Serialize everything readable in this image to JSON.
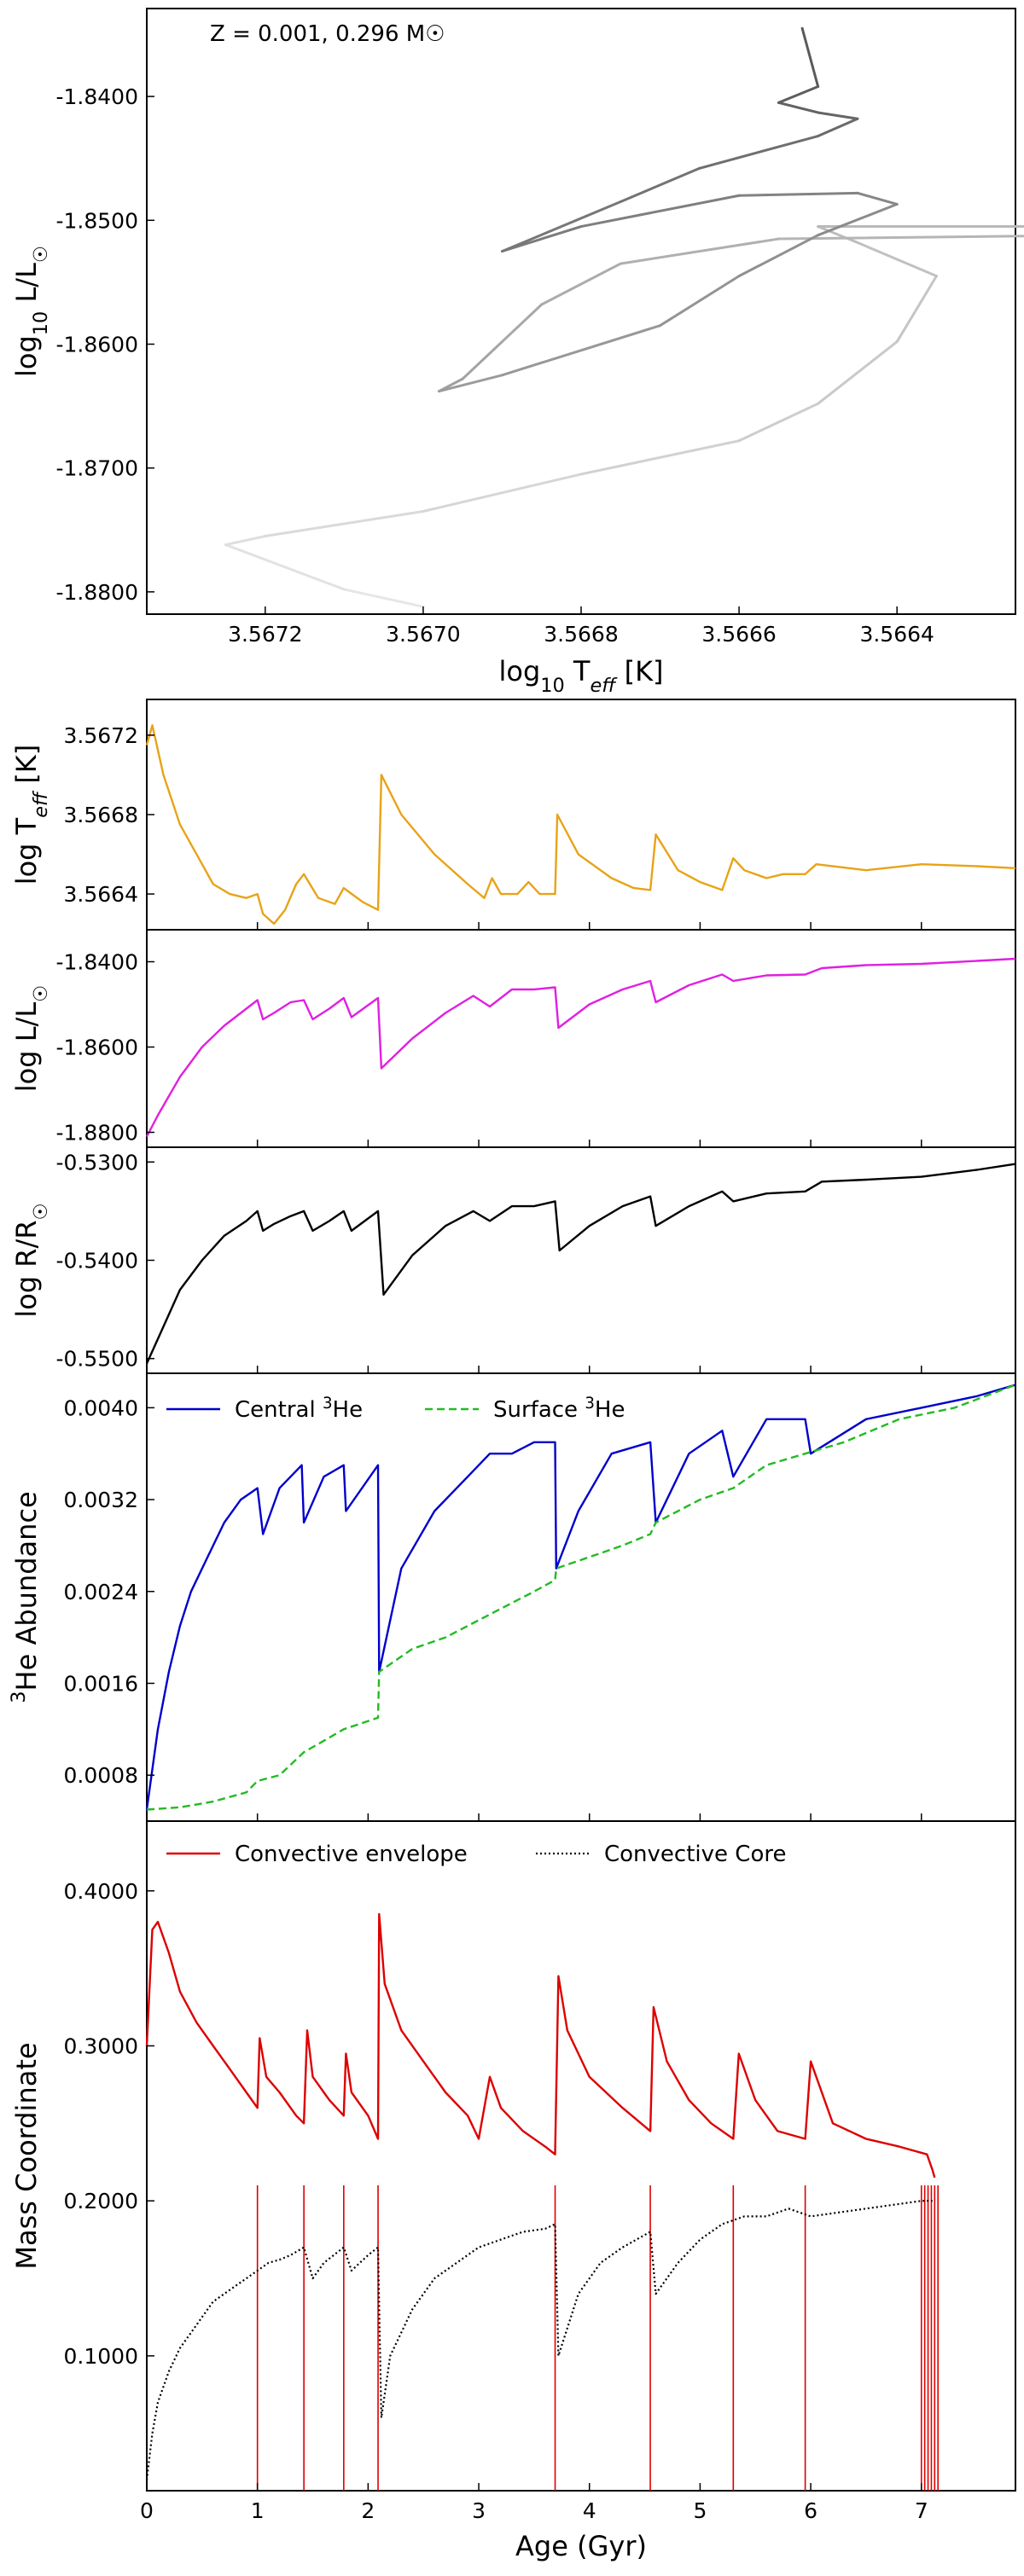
{
  "chart_data": [
    {
      "type": "line",
      "panel": "hr",
      "annotation": "Z = 0.001, 0.296 M☉",
      "xlabel": "log10 Teff [K]",
      "ylabel": "log10 L/L☉",
      "xlim": [
        3.56735,
        3.56625
      ],
      "ylim": [
        -1.8818,
        -1.8329
      ],
      "xticks": [
        3.5672,
        3.567,
        3.5668,
        3.5666,
        3.5664
      ],
      "xticklabels": [
        "3.5672",
        "3.5670",
        "3.5668",
        "3.5666",
        "3.5664"
      ],
      "yticks": [
        -1.84,
        -1.85,
        -1.86,
        -1.87,
        -1.88
      ],
      "yticklabels": [
        "-1.8400",
        "-1.8500",
        "-1.8600",
        "-1.8700",
        "-1.8800"
      ],
      "track": {
        "x": [
          3.567,
          3.5671,
          3.56725,
          3.5672,
          3.567,
          3.5668,
          3.5666,
          3.5665,
          3.5664,
          3.56635,
          3.56645,
          3.5665,
          3.5652,
          3.56655,
          3.56675,
          3.56685,
          3.5669,
          3.56695,
          3.56698,
          3.5669,
          3.5667,
          3.5666,
          3.5665,
          3.5664,
          3.56645,
          3.5666,
          3.5668,
          3.5669,
          3.56675,
          3.56665,
          3.5665,
          3.56645,
          3.5665,
          3.56655,
          3.5665,
          3.56652
        ],
        "y": [
          -1.8812,
          -1.8798,
          -1.8762,
          -1.8755,
          -1.8735,
          -1.8705,
          -1.8678,
          -1.8648,
          -1.8598,
          -1.8545,
          -1.8518,
          -1.8505,
          -1.8505,
          -1.8515,
          -1.8535,
          -1.8568,
          -1.8598,
          -1.8628,
          -1.8638,
          -1.8625,
          -1.8585,
          -1.8545,
          -1.8512,
          -1.8487,
          -1.8478,
          -1.848,
          -1.8505,
          -1.8525,
          -1.8485,
          -1.8458,
          -1.8432,
          -1.8418,
          -1.8413,
          -1.8405,
          -1.8392,
          -1.8345
        ]
      }
    },
    {
      "type": "line",
      "panel": "teff",
      "ylabel": "log Teff [K]",
      "ylim": [
        3.56622,
        3.56738
      ],
      "yticks": [
        3.5664,
        3.5668,
        3.5672
      ],
      "yticklabels": [
        "3.5664",
        "3.5668",
        "3.5672"
      ],
      "color": "#e8a317",
      "x": [
        0,
        0.05,
        0.15,
        0.3,
        0.45,
        0.6,
        0.75,
        0.9,
        1.0,
        1.05,
        1.15,
        1.25,
        1.35,
        1.42,
        1.55,
        1.7,
        1.78,
        1.95,
        2.09,
        2.12,
        2.3,
        2.6,
        2.9,
        3.05,
        3.12,
        3.2,
        3.35,
        3.45,
        3.55,
        3.69,
        3.71,
        3.9,
        4.2,
        4.4,
        4.55,
        4.6,
        4.8,
        5.0,
        5.2,
        5.3,
        5.4,
        5.6,
        5.75,
        5.95,
        6.05,
        6.5,
        7.0,
        7.5,
        7.85
      ],
      "y": [
        3.56715,
        3.56725,
        3.567,
        3.56675,
        3.5666,
        3.56645,
        3.5664,
        3.56638,
        3.5664,
        3.5663,
        3.56625,
        3.56632,
        3.56645,
        3.5665,
        3.56638,
        3.56635,
        3.56643,
        3.56636,
        3.56632,
        3.567,
        3.5668,
        3.5666,
        3.56645,
        3.56638,
        3.56648,
        3.5664,
        3.5664,
        3.56646,
        3.5664,
        3.5664,
        3.5668,
        3.5666,
        3.56648,
        3.56643,
        3.56642,
        3.5667,
        3.56652,
        3.56646,
        3.56642,
        3.56658,
        3.56652,
        3.56648,
        3.5665,
        3.5665,
        3.56655,
        3.56652,
        3.56655,
        3.56654,
        3.56653
      ]
    },
    {
      "type": "line",
      "panel": "lum",
      "ylabel": "log L/L☉",
      "ylim": [
        -1.8835,
        -1.8325
      ],
      "yticks": [
        -1.84,
        -1.86,
        -1.88
      ],
      "yticklabels": [
        "-1.8400",
        "-1.8600",
        "-1.8800"
      ],
      "color": "#e020e0",
      "x": [
        0,
        0.1,
        0.3,
        0.5,
        0.7,
        0.9,
        1.0,
        1.05,
        1.15,
        1.3,
        1.42,
        1.5,
        1.65,
        1.78,
        1.85,
        2.09,
        2.12,
        2.4,
        2.7,
        2.95,
        3.1,
        3.3,
        3.5,
        3.69,
        3.72,
        4.0,
        4.3,
        4.55,
        4.6,
        4.9,
        5.2,
        5.3,
        5.6,
        5.95,
        6.1,
        6.5,
        7.0,
        7.5,
        7.85
      ],
      "y": [
        -1.881,
        -1.876,
        -1.867,
        -1.86,
        -1.855,
        -1.851,
        -1.849,
        -1.8535,
        -1.852,
        -1.8495,
        -1.849,
        -1.8535,
        -1.851,
        -1.8485,
        -1.853,
        -1.8485,
        -1.865,
        -1.858,
        -1.852,
        -1.848,
        -1.8505,
        -1.8465,
        -1.8465,
        -1.846,
        -1.8555,
        -1.85,
        -1.8465,
        -1.8445,
        -1.8495,
        -1.8455,
        -1.843,
        -1.8445,
        -1.8432,
        -1.843,
        -1.8415,
        -1.8408,
        -1.8405,
        -1.8398,
        -1.8393
      ]
    },
    {
      "type": "line",
      "panel": "radius",
      "ylabel": "log R/R☉",
      "ylim": [
        -0.5515,
        -0.5285
      ],
      "yticks": [
        -0.53,
        -0.54,
        -0.55
      ],
      "yticklabels": [
        "-0.5300",
        "-0.5400",
        "-0.5500"
      ],
      "color": "#000000",
      "x": [
        0,
        0.1,
        0.3,
        0.5,
        0.7,
        0.9,
        1.0,
        1.05,
        1.15,
        1.3,
        1.42,
        1.5,
        1.65,
        1.78,
        1.85,
        2.09,
        2.14,
        2.4,
        2.7,
        2.95,
        3.1,
        3.3,
        3.5,
        3.69,
        3.73,
        4.0,
        4.3,
        4.55,
        4.6,
        4.9,
        5.2,
        5.3,
        5.6,
        5.95,
        6.1,
        6.5,
        7.0,
        7.5,
        7.85
      ],
      "y": [
        -0.5505,
        -0.548,
        -0.543,
        -0.54,
        -0.5375,
        -0.536,
        -0.535,
        -0.537,
        -0.5363,
        -0.5355,
        -0.535,
        -0.537,
        -0.536,
        -0.535,
        -0.537,
        -0.535,
        -0.5435,
        -0.5395,
        -0.5365,
        -0.535,
        -0.536,
        -0.5345,
        -0.5345,
        -0.534,
        -0.539,
        -0.5365,
        -0.5345,
        -0.5335,
        -0.5365,
        -0.5345,
        -0.533,
        -0.534,
        -0.5332,
        -0.533,
        -0.532,
        -0.5318,
        -0.5315,
        -0.5308,
        -0.5302
      ]
    },
    {
      "type": "line",
      "panel": "he3",
      "ylabel": "3He Abundance",
      "ylim": [
        0.0004,
        0.0043
      ],
      "yticks": [
        0.0008,
        0.0016,
        0.0024,
        0.0032,
        0.004
      ],
      "yticklabels": [
        "0.0008",
        "0.0016",
        "0.0024",
        "0.0032",
        "0.0040"
      ],
      "legend_loc": "top-left",
      "series": [
        {
          "name": "Central 3He",
          "color": "#0000cc",
          "dash": "solid",
          "x": [
            0,
            0.1,
            0.2,
            0.3,
            0.4,
            0.55,
            0.7,
            0.85,
            1.0,
            1.05,
            1.2,
            1.4,
            1.42,
            1.6,
            1.78,
            1.8,
            2.09,
            2.1,
            2.3,
            2.6,
            2.9,
            3.1,
            3.3,
            3.5,
            3.69,
            3.7,
            3.9,
            4.2,
            4.55,
            4.6,
            4.9,
            5.2,
            5.3,
            5.6,
            5.95,
            6.0,
            6.5,
            7.0,
            7.5,
            7.85
          ],
          "y": [
            0.0005,
            0.0012,
            0.0017,
            0.0021,
            0.0024,
            0.0027,
            0.003,
            0.0032,
            0.0033,
            0.0029,
            0.0033,
            0.0035,
            0.003,
            0.0034,
            0.0035,
            0.0031,
            0.0035,
            0.0017,
            0.0026,
            0.0031,
            0.0034,
            0.0036,
            0.0036,
            0.0037,
            0.0037,
            0.0026,
            0.0031,
            0.0036,
            0.0037,
            0.003,
            0.0036,
            0.0038,
            0.0034,
            0.0039,
            0.0039,
            0.0036,
            0.0039,
            0.004,
            0.0041,
            0.0042
          ]
        },
        {
          "name": "Surface 3He",
          "color": "#22bb22",
          "dash": "dashed",
          "x": [
            0,
            0.3,
            0.6,
            0.9,
            1.0,
            1.2,
            1.42,
            1.6,
            1.78,
            2.09,
            2.1,
            2.4,
            2.7,
            3.1,
            3.5,
            3.69,
            3.7,
            4.0,
            4.3,
            4.55,
            4.6,
            5.0,
            5.3,
            5.6,
            5.95,
            6.3,
            6.8,
            7.3,
            7.85
          ],
          "y": [
            0.0005,
            0.00052,
            0.00057,
            0.00065,
            0.00075,
            0.0008,
            0.001,
            0.0011,
            0.0012,
            0.0013,
            0.0017,
            0.0019,
            0.002,
            0.0022,
            0.0024,
            0.0025,
            0.0026,
            0.0027,
            0.0028,
            0.0029,
            0.003,
            0.0032,
            0.0033,
            0.0035,
            0.0036,
            0.0037,
            0.0039,
            0.004,
            0.0042
          ]
        }
      ]
    },
    {
      "type": "line",
      "panel": "mass",
      "ylabel": "Mass Coordinate",
      "xlabel": "Age (Gyr)",
      "xlim": [
        0,
        7.85
      ],
      "xticks": [
        0,
        1,
        2,
        3,
        4,
        5,
        6,
        7
      ],
      "xticklabels": [
        "0",
        "1",
        "2",
        "3",
        "4",
        "5",
        "6",
        "7"
      ],
      "ylim": [
        0.013,
        0.445
      ],
      "yticks": [
        0.1,
        0.2,
        0.3,
        0.4
      ],
      "yticklabels": [
        "0.1000",
        "0.2000",
        "0.3000",
        "0.4000"
      ],
      "legend_loc": "top-left",
      "series": [
        {
          "name": "Convective envelope",
          "color": "#dd0000",
          "dash": "solid",
          "x": [
            0,
            0.05,
            0.1,
            0.2,
            0.3,
            0.45,
            0.6,
            0.75,
            0.9,
            1.0,
            1.02,
            1.08,
            1.2,
            1.35,
            1.42,
            1.45,
            1.5,
            1.65,
            1.78,
            1.8,
            1.85,
            2.0,
            2.09,
            2.1,
            2.15,
            2.3,
            2.5,
            2.7,
            2.9,
            3.0,
            3.1,
            3.2,
            3.4,
            3.6,
            3.69,
            3.72,
            3.8,
            4.0,
            4.3,
            4.55,
            4.58,
            4.7,
            4.9,
            5.1,
            5.3,
            5.35,
            5.5,
            5.7,
            5.95,
            6.0,
            6.2,
            6.5,
            6.8,
            7.05,
            7.1,
            7.12
          ],
          "y": [
            0.3,
            0.375,
            0.38,
            0.36,
            0.335,
            0.315,
            0.3,
            0.285,
            0.27,
            0.26,
            0.305,
            0.28,
            0.27,
            0.255,
            0.25,
            0.31,
            0.28,
            0.265,
            0.255,
            0.295,
            0.27,
            0.255,
            0.24,
            0.385,
            0.34,
            0.31,
            0.29,
            0.27,
            0.255,
            0.24,
            0.28,
            0.26,
            0.245,
            0.235,
            0.23,
            0.345,
            0.31,
            0.28,
            0.26,
            0.245,
            0.325,
            0.29,
            0.265,
            0.25,
            0.24,
            0.295,
            0.265,
            0.245,
            0.24,
            0.29,
            0.25,
            0.24,
            0.235,
            0.23,
            0.22,
            0.215
          ]
        },
        {
          "name": "Convective Core",
          "color": "#000000",
          "dash": "dotted",
          "x": [
            0,
            0.05,
            0.1,
            0.2,
            0.3,
            0.4,
            0.5,
            0.6,
            0.7,
            0.8,
            0.9,
            1.0,
            1.1,
            1.2,
            1.3,
            1.42,
            1.5,
            1.6,
            1.78,
            1.85,
            2.0,
            2.09,
            2.12,
            2.2,
            2.4,
            2.6,
            2.8,
            3.0,
            3.2,
            3.4,
            3.6,
            3.69,
            3.72,
            3.9,
            4.1,
            4.3,
            4.55,
            4.6,
            4.8,
            5.0,
            5.2,
            5.4,
            5.6,
            5.8,
            6.0,
            6.5,
            7.0,
            7.1
          ],
          "y": [
            0.02,
            0.05,
            0.07,
            0.09,
            0.105,
            0.115,
            0.125,
            0.135,
            0.14,
            0.145,
            0.15,
            0.155,
            0.16,
            0.162,
            0.165,
            0.17,
            0.15,
            0.16,
            0.17,
            0.155,
            0.165,
            0.17,
            0.06,
            0.1,
            0.13,
            0.15,
            0.16,
            0.17,
            0.175,
            0.18,
            0.182,
            0.185,
            0.1,
            0.14,
            0.16,
            0.17,
            0.18,
            0.14,
            0.16,
            0.175,
            0.185,
            0.19,
            0.19,
            0.195,
            0.19,
            0.195,
            0.2,
            0.2
          ]
        }
      ],
      "drop_lines_x": [
        1.0,
        1.42,
        1.78,
        2.09,
        3.69,
        4.55,
        5.3,
        5.95,
        7.0,
        7.03,
        7.06,
        7.09,
        7.12,
        7.15
      ]
    }
  ]
}
